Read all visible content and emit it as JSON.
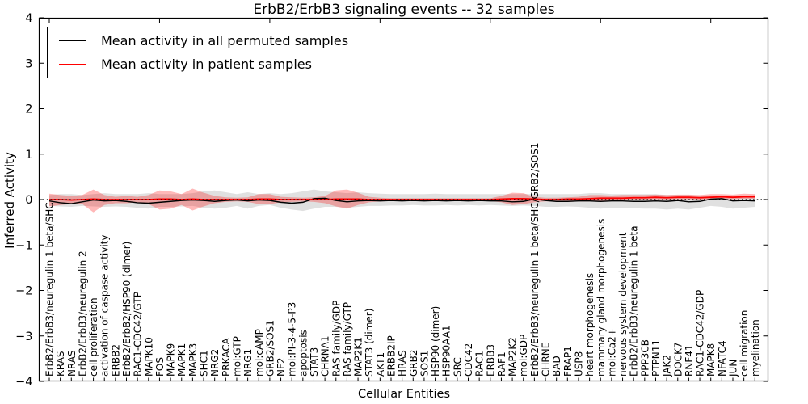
{
  "title": "ErbB2/ErbB3 signaling events -- 32 samples",
  "chart_data": {
    "type": "line",
    "title": "ErbB2/ErbB3 signaling events -- 32 samples",
    "xlabel": "Cellular Entities",
    "ylabel": "Inferred Activity",
    "ylim": [
      -4,
      4
    ],
    "y_ticks": [
      4,
      3,
      2,
      1,
      0,
      -1,
      -2,
      -3,
      -4
    ],
    "grid": false,
    "legend_position": "upper left",
    "zero_line": {
      "style": "dotted",
      "color": "#000000",
      "y": 0
    },
    "categories": [
      "ErbB2/ErbB3/neuregulin 1 beta/SHC",
      "KRAS",
      "NRAS",
      "ErbB2/ErbB3/neuregulin 2",
      "cell proliferation",
      "activation of caspase activity",
      "ERBB2",
      "ErbB2/ErbB2/HSP90 (dimer)",
      "RAC1-CDC42/GTP",
      "MAPK10",
      "FOS",
      "MAPK9",
      "MAPK1",
      "MAPK3",
      "SHC1",
      "NRG2",
      "PRKACA",
      "mol:GTP",
      "NRG1",
      "mol:cAMP",
      "GRB2/SOS1",
      "NF2",
      "mol:PI-3-4-5-P3",
      "apoptosis",
      "STAT3",
      "CHRNA1",
      "RAS family/GDP",
      "RAS family/GTP",
      "MAP2K1",
      "STAT3 (dimer)",
      "AKT1",
      "ERBB2IP",
      "HRAS",
      "GRB2",
      "SOS1",
      "HSP90 (dimer)",
      "HSP90AA1",
      "SRC",
      "CDC42",
      "RAC1",
      "ERBB3",
      "RAF1",
      "MAP2K2",
      "mol:GDP",
      "ErbB2/ErbB3/neuregulin 1 beta/SHC/GRB2/SOS1",
      "CHRNE",
      "BAD",
      "FRAP1",
      "USP8",
      "heart morphogenesis",
      "mammary gland morphogenesis",
      "mol:Ca2+",
      "nervous system development",
      "ErbB2/ErbB3/neuregulin 1 beta",
      "PPP3CB",
      "PTPN11",
      "JAK2",
      "DOCK7",
      "RNF41",
      "RAC1-CDC42/GDP",
      "MAPK8",
      "NFATC4",
      "JUN",
      "cell migration",
      "myelination"
    ],
    "series": [
      {
        "name": "Mean activity in all permuted samples",
        "color": "#000000",
        "band_color": "rgba(0,0,0,0.12)",
        "values": [
          -0.03,
          -0.07,
          -0.09,
          -0.05,
          -0.01,
          -0.03,
          -0.02,
          -0.04,
          -0.07,
          -0.08,
          -0.06,
          -0.04,
          -0.02,
          -0.01,
          -0.02,
          -0.04,
          -0.02,
          -0.01,
          -0.03,
          -0.01,
          -0.02,
          -0.06,
          -0.08,
          -0.06,
          0.02,
          0.03,
          -0.02,
          -0.05,
          -0.03,
          -0.02,
          -0.03,
          -0.02,
          -0.03,
          -0.02,
          -0.03,
          -0.02,
          -0.03,
          -0.02,
          -0.03,
          -0.02,
          -0.03,
          -0.03,
          -0.05,
          -0.04,
          0.01,
          -0.02,
          -0.04,
          -0.04,
          -0.03,
          -0.03,
          -0.04,
          -0.03,
          -0.03,
          -0.04,
          -0.04,
          -0.03,
          -0.04,
          -0.02,
          -0.05,
          -0.04,
          0.01,
          0.02,
          -0.03,
          -0.02,
          -0.03
        ],
        "band_upper": [
          0.1,
          0.12,
          0.12,
          0.1,
          0.12,
          0.14,
          0.12,
          0.12,
          0.12,
          0.14,
          0.12,
          0.12,
          0.12,
          0.14,
          0.18,
          0.2,
          0.16,
          0.12,
          0.16,
          0.12,
          0.14,
          0.12,
          0.14,
          0.18,
          0.22,
          0.18,
          0.16,
          0.14,
          0.16,
          0.14,
          0.13,
          0.12,
          0.12,
          0.12,
          0.12,
          0.13,
          0.12,
          0.12,
          0.12,
          0.12,
          0.12,
          0.12,
          0.12,
          0.12,
          0.12,
          0.12,
          0.12,
          0.12,
          0.12,
          0.14,
          0.14,
          0.12,
          0.12,
          0.12,
          0.12,
          0.12,
          0.1,
          0.1,
          0.1,
          0.08,
          0.08,
          0.08,
          0.08,
          0.06,
          0.1
        ],
        "band_lower": [
          -0.14,
          -0.15,
          -0.16,
          -0.14,
          -0.15,
          -0.16,
          -0.15,
          -0.16,
          -0.18,
          -0.2,
          -0.16,
          -0.16,
          -0.15,
          -0.14,
          -0.18,
          -0.2,
          -0.18,
          -0.14,
          -0.2,
          -0.14,
          -0.12,
          -0.18,
          -0.22,
          -0.25,
          -0.2,
          -0.16,
          -0.16,
          -0.18,
          -0.16,
          -0.14,
          -0.14,
          -0.13,
          -0.13,
          -0.12,
          -0.13,
          -0.13,
          -0.12,
          -0.13,
          -0.12,
          -0.13,
          -0.12,
          -0.13,
          -0.14,
          -0.13,
          -0.14,
          -0.16,
          -0.16,
          -0.15,
          -0.16,
          -0.18,
          -0.2,
          -0.18,
          -0.18,
          -0.19,
          -0.2,
          -0.2,
          -0.22,
          -0.2,
          -0.22,
          -0.18,
          -0.14,
          -0.16,
          -0.2,
          -0.18,
          -0.16
        ]
      },
      {
        "name": "Mean activity in patient samples",
        "color": "#ff0000",
        "band_color": "rgba(255,0,0,0.28)",
        "values": [
          0.0,
          0.0,
          -0.01,
          0.0,
          0.01,
          0.0,
          0.0,
          0.0,
          0.0,
          0.0,
          0.01,
          0.01,
          0.0,
          0.01,
          0.0,
          0.0,
          0.0,
          0.0,
          0.0,
          0.01,
          0.01,
          0.0,
          0.0,
          0.0,
          0.0,
          0.0,
          0.01,
          0.01,
          0.01,
          0.0,
          0.0,
          0.0,
          0.0,
          0.0,
          0.0,
          0.0,
          0.0,
          0.0,
          0.0,
          0.0,
          0.0,
          0.01,
          0.02,
          0.02,
          0.01,
          0.0,
          0.0,
          0.01,
          0.01,
          0.02,
          0.03,
          0.03,
          0.03,
          0.04,
          0.04,
          0.05,
          0.04,
          0.05,
          0.05,
          0.04,
          0.05,
          0.06,
          0.05,
          0.06,
          0.06
        ],
        "band_upper": [
          0.13,
          0.1,
          0.08,
          0.1,
          0.22,
          0.1,
          0.06,
          0.08,
          0.06,
          0.1,
          0.2,
          0.18,
          0.12,
          0.24,
          0.15,
          0.08,
          0.05,
          0.04,
          0.05,
          0.12,
          0.12,
          0.06,
          0.05,
          0.04,
          0.05,
          0.08,
          0.2,
          0.22,
          0.15,
          0.06,
          0.04,
          0.03,
          0.03,
          0.03,
          0.03,
          0.03,
          0.03,
          0.03,
          0.03,
          0.03,
          0.03,
          0.08,
          0.15,
          0.14,
          0.06,
          0.04,
          0.04,
          0.05,
          0.06,
          0.1,
          0.1,
          0.09,
          0.1,
          0.1,
          0.1,
          0.11,
          0.1,
          0.11,
          0.11,
          0.1,
          0.12,
          0.12,
          0.11,
          0.13,
          0.12
        ],
        "band_lower": [
          -0.15,
          -0.12,
          -0.1,
          -0.1,
          -0.28,
          -0.12,
          -0.08,
          -0.08,
          -0.06,
          -0.1,
          -0.22,
          -0.2,
          -0.12,
          -0.24,
          -0.15,
          -0.08,
          -0.05,
          -0.04,
          -0.05,
          -0.1,
          -0.1,
          -0.06,
          -0.05,
          -0.04,
          -0.05,
          -0.08,
          -0.15,
          -0.2,
          -0.12,
          -0.06,
          -0.04,
          -0.03,
          -0.03,
          -0.03,
          -0.03,
          -0.03,
          -0.03,
          -0.03,
          -0.03,
          -0.03,
          -0.03,
          -0.06,
          -0.12,
          -0.1,
          -0.06,
          -0.04,
          -0.04,
          -0.05,
          -0.04,
          -0.04,
          -0.03,
          -0.02,
          -0.02,
          -0.01,
          0.0,
          0.01,
          0.0,
          0.01,
          0.01,
          0.0,
          0.01,
          0.02,
          0.01,
          0.02,
          0.02
        ]
      }
    ]
  }
}
